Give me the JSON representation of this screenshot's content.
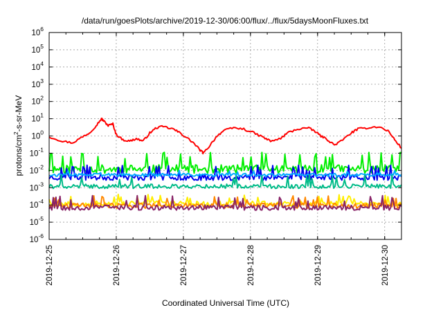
{
  "chart_data": {
    "type": "line",
    "title": "/data/run/goesPlots/archive/2019-12-30/06:00/flux/../flux/5daysMoonFluxes.txt",
    "xlabel": "Coordinated Universal Time (UTC)",
    "ylabel_parts": {
      "base": "protons/cm",
      "sup": "2",
      "rest": "-s-sr-MeV"
    },
    "y_scale": "log",
    "ylim": [
      1e-06,
      1000000.0
    ],
    "y_tick_exponents": [
      -6,
      -5,
      -4,
      -3,
      -2,
      -1,
      0,
      1,
      2,
      3,
      4,
      5,
      6
    ],
    "y_tick_base": "10",
    "x_range_days": [
      0,
      5.25
    ],
    "x_ticks": [
      {
        "label": "2019-12-25",
        "day": 0
      },
      {
        "label": "2019-12-26",
        "day": 1
      },
      {
        "label": "2019-12-27",
        "day": 2
      },
      {
        "label": "2019-12-28",
        "day": 3
      },
      {
        "label": "2019-12-29",
        "day": 4
      },
      {
        "label": "2019-12-30",
        "day": 5
      }
    ],
    "grid": true,
    "legend": "none",
    "series": [
      {
        "color": "#ff0000",
        "points": [
          [
            0,
            0.9
          ],
          [
            0.2,
            0.5
          ],
          [
            0.35,
            0.4
          ],
          [
            0.5,
            0.9
          ],
          [
            0.6,
            1.5
          ],
          [
            0.7,
            4
          ],
          [
            0.78,
            10
          ],
          [
            0.82,
            7
          ],
          [
            0.88,
            4
          ],
          [
            0.95,
            5
          ],
          [
            1.0,
            1.2
          ],
          [
            1.1,
            0.6
          ],
          [
            1.2,
            0.5
          ],
          [
            1.3,
            0.7
          ],
          [
            1.4,
            0.5
          ],
          [
            1.5,
            1.5
          ],
          [
            1.6,
            3
          ],
          [
            1.7,
            3.5
          ],
          [
            1.85,
            2.5
          ],
          [
            1.95,
            1.5
          ],
          [
            2.05,
            0.8
          ],
          [
            2.15,
            0.4
          ],
          [
            2.25,
            0.15
          ],
          [
            2.3,
            0.1
          ],
          [
            2.4,
            0.3
          ],
          [
            2.5,
            1
          ],
          [
            2.6,
            2
          ],
          [
            2.75,
            3
          ],
          [
            2.9,
            2.5
          ],
          [
            3.05,
            1.5
          ],
          [
            3.2,
            0.8
          ],
          [
            3.3,
            0.5
          ],
          [
            3.45,
            0.7
          ],
          [
            3.55,
            1.5
          ],
          [
            3.7,
            2.5
          ],
          [
            3.85,
            3
          ],
          [
            3.95,
            2
          ],
          [
            4.05,
            1
          ],
          [
            4.15,
            0.6
          ],
          [
            4.25,
            0.3
          ],
          [
            4.35,
            0.5
          ],
          [
            4.5,
            1.5
          ],
          [
            4.6,
            2.5
          ],
          [
            4.75,
            3
          ],
          [
            4.9,
            3.5
          ],
          [
            5.05,
            2
          ],
          [
            5.15,
            0.6
          ],
          [
            5.25,
            0.2
          ]
        ]
      },
      {
        "color": "#00ee00",
        "base": 0.012,
        "amp": 0.5,
        "spike": 0.08,
        "seed": 11
      },
      {
        "color": "#0000ee",
        "base": 0.004,
        "amp": 0.35,
        "spike": 0.015,
        "seed": 23
      },
      {
        "color": "#00aaff",
        "base": 0.0055,
        "amp": 0.18,
        "spike": 0.008,
        "seed": 37
      },
      {
        "color": "#00bb88",
        "base": 0.0012,
        "amp": 0.25,
        "spike": 0.004,
        "seed": 41
      },
      {
        "color": "#ffee00",
        "base": 0.00012,
        "amp": 0.3,
        "spike": 0.0003,
        "seed": 53
      },
      {
        "color": "#ff8800",
        "base": 9e-05,
        "amp": 0.3,
        "spike": 0.00025,
        "seed": 61
      },
      {
        "color": "#882266",
        "base": 7e-05,
        "amp": 0.3,
        "spike": 0.00025,
        "seed": 67
      }
    ]
  }
}
